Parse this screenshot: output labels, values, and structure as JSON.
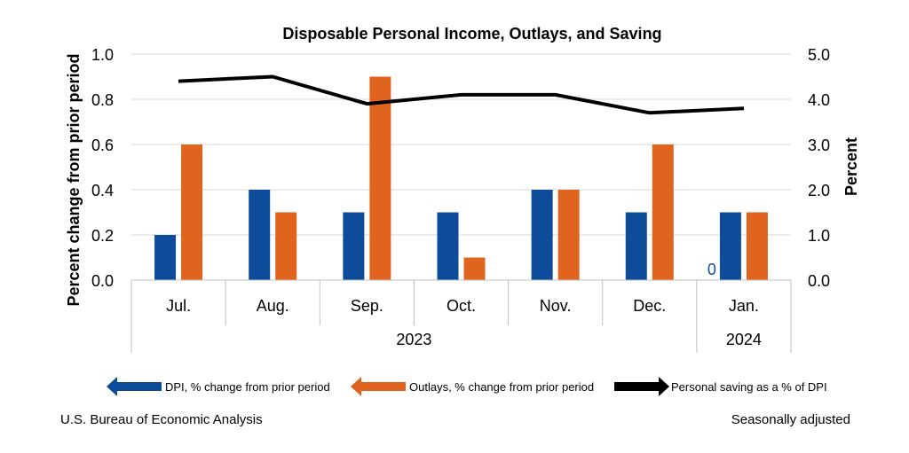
{
  "chart_data": {
    "type": "bar",
    "title": "Disposable Personal Income, Outlays, and Saving",
    "categories": [
      "Jul.",
      "Aug.",
      "Sep.",
      "Oct.",
      "Nov.",
      "Dec.",
      "Jan."
    ],
    "year_groups": [
      {
        "label": "2023",
        "count": 6
      },
      {
        "label": "2024",
        "count": 1
      }
    ],
    "series": [
      {
        "name": "DPI, % change from prior period",
        "type": "bar",
        "axis": "left",
        "color": "#0D4C9A",
        "values": [
          0.2,
          0.4,
          0.3,
          0.3,
          0.4,
          0.3,
          0.3
        ]
      },
      {
        "name": "Outlays, % change from prior period",
        "type": "bar",
        "axis": "left",
        "color": "#E0641E",
        "values": [
          0.6,
          0.3,
          0.9,
          0.1,
          0.4,
          0.6,
          0.3
        ]
      },
      {
        "name": "Personal saving as a % of DPI",
        "type": "line",
        "axis": "right",
        "color": "#000000",
        "values": [
          4.4,
          4.5,
          3.9,
          4.1,
          4.1,
          3.7,
          3.8
        ]
      }
    ],
    "ylabel_left": "Percent change from prior period",
    "ylabel_right": "Percent",
    "ylim_left": [
      0.0,
      1.0
    ],
    "ylim_right": [
      0.0,
      5.0
    ],
    "yticks_left": [
      "0.0",
      "0.2",
      "0.4",
      "0.6",
      "0.8",
      "1.0"
    ],
    "yticks_right": [
      "0.0",
      "1.0",
      "2.0",
      "3.0",
      "4.0",
      "5.0"
    ],
    "stray_label": "0",
    "grid": true,
    "legend_position": "bottom"
  },
  "footer": {
    "source": "U.S. Bureau of Economic Analysis",
    "note": "Seasonally adjusted"
  }
}
